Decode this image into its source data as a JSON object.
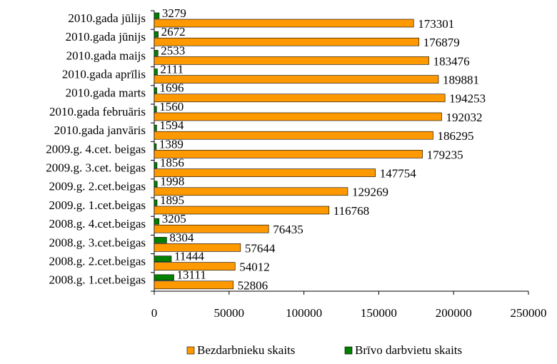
{
  "chart_data": {
    "type": "barh",
    "categories": [
      "2010.gada jūlijs",
      "2010.gada jūnijs",
      "2010.gada maijs",
      "2010.gada aprīlis",
      "2010.gada marts",
      "2010.gada februāris",
      "2010.gada janvāris",
      "2009.g. 4.cet. beigas",
      "2009.g. 3.cet. beigas",
      "2009.g. 2.cet.beigas",
      "2009.g. 1.cet.beigas",
      "2008.g. 4.cet.beigas",
      "2008.g. 3.cet.beigas",
      "2008.g. 2.cet.beigas",
      "2008.g. 1.cet.beigas"
    ],
    "series": [
      {
        "name": "Bezdarbnieku skaits",
        "color": "#ff9900",
        "values": [
          173301,
          176879,
          183476,
          189881,
          194253,
          192032,
          186295,
          179235,
          147754,
          129269,
          116768,
          76435,
          57644,
          54012,
          52806
        ]
      },
      {
        "name": "Brīvo darbvietu skaits",
        "color": "#008000",
        "values": [
          3279,
          2672,
          2533,
          2111,
          1696,
          1560,
          1594,
          1389,
          1856,
          1998,
          1895,
          3205,
          8304,
          11444,
          13111
        ]
      }
    ],
    "xlim": [
      0,
      250000
    ],
    "xticks": [
      0,
      50000,
      100000,
      150000,
      200000,
      250000
    ],
    "legend": "bottom"
  }
}
